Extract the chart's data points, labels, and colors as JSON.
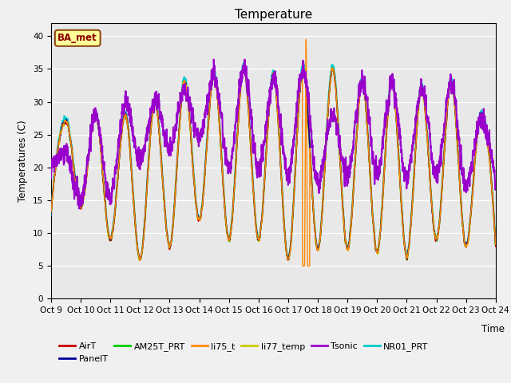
{
  "title": "Temperature",
  "ylabel": "Temperatures (C)",
  "xlabel": "Time",
  "ylim": [
    0,
    42
  ],
  "yticks": [
    0,
    5,
    10,
    15,
    20,
    25,
    30,
    35,
    40
  ],
  "xlim": [
    0,
    15
  ],
  "xtick_labels": [
    "Oct 9",
    "Oct 10",
    "Oct 11",
    "Oct 12",
    "Oct 13",
    "Oct 14",
    "Oct 15",
    "Oct 16",
    "Oct 17",
    "Oct 18",
    "Oct 19",
    "Oct 20",
    "Oct 21",
    "Oct 22",
    "Oct 23",
    "Oct 24"
  ],
  "bg_color": "#e8e8e8",
  "fig_color": "#f0f0f0",
  "annotation_text": "BA_met",
  "annotation_box_color": "#ffff99",
  "annotation_box_edge": "#8b4513",
  "annotation_text_color": "#8b0000",
  "series": {
    "AirT": {
      "color": "#cc0000",
      "lw": 1.0,
      "zorder": 5
    },
    "PanelT": {
      "color": "#000099",
      "lw": 1.0,
      "zorder": 5
    },
    "AM25T_PRT": {
      "color": "#00cc00",
      "lw": 1.0,
      "zorder": 5
    },
    "li75_t": {
      "color": "#ff8800",
      "lw": 1.0,
      "zorder": 6
    },
    "li77_temp": {
      "color": "#cccc00",
      "lw": 1.5,
      "zorder": 4
    },
    "Tsonic": {
      "color": "#9900cc",
      "lw": 1.5,
      "zorder": 7
    },
    "NR01_PRT": {
      "color": "#00cccc",
      "lw": 1.5,
      "zorder": 3
    }
  },
  "peak_days": [
    0.5,
    1.5,
    2.5,
    3.5,
    4.5,
    5.5,
    6.5,
    7.5,
    8.5,
    9.5,
    10.5,
    11.5,
    12.5,
    13.5,
    14.5
  ],
  "peak_heights": [
    27,
    28,
    28,
    30,
    33,
    34,
    35,
    34,
    35,
    35,
    33,
    33,
    32,
    33,
    28
  ],
  "trough_heights": [
    13,
    14,
    9,
    6,
    8,
    12,
    9,
    9,
    6,
    7.5,
    7.5,
    7,
    6.5,
    9,
    8
  ],
  "tsonic_peaks": [
    22,
    28,
    30,
    30,
    32,
    34,
    35,
    33,
    35,
    28,
    33,
    33,
    32,
    33,
    27
  ],
  "tsonic_troughs": [
    20,
    15,
    15,
    21,
    23,
    25,
    20,
    20,
    19,
    18,
    19,
    19,
    18,
    19,
    17
  ],
  "li75_spike_day": 8.6,
  "li75_spike_height": 39.5
}
